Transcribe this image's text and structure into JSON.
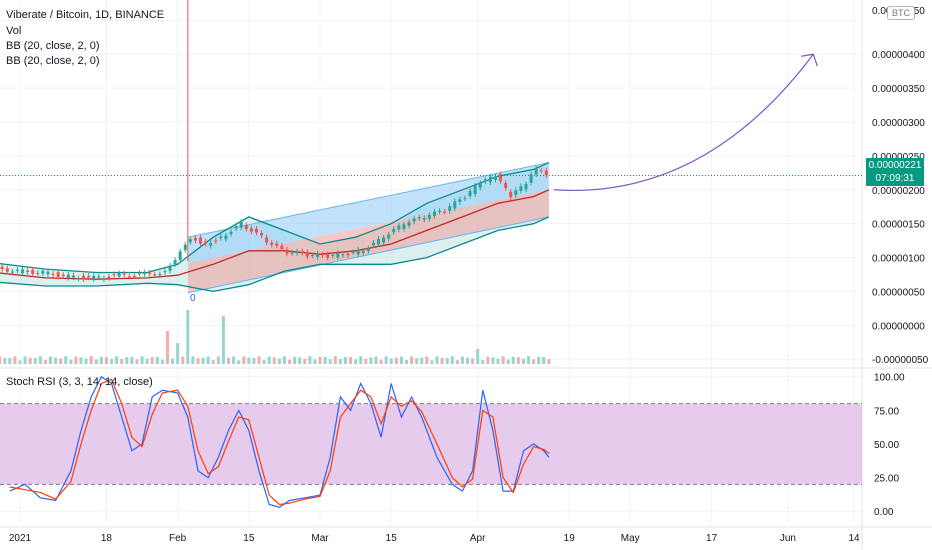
{
  "header": {
    "symbol_title": "Viberate / Bitcoin, 1D, BINANCE",
    "indicator_vol": "Vol",
    "indicator_bb1": "BB (20, close, 2, 0)",
    "indicator_bb2": "BB (20, close, 2, 0)",
    "rsi_title": "Stoch RSI (3, 3, 14, 14, close)",
    "currency_badge": "BTC"
  },
  "price_tag": {
    "price": "0.00000221",
    "countdown": "07:09:31"
  },
  "low_marker": "0",
  "colors": {
    "up": "#26a69a",
    "down": "#ef5350",
    "bb_basis": "#c62828",
    "bb_band": "#0b8a8a",
    "bb_fill": "#b2dfdb",
    "channel_blue": "#90caf9",
    "channel_red": "#ef9a9a",
    "arrow": "#7e57c2",
    "rsi_k": "#2962ff",
    "rsi_d": "#ff3d00",
    "rsi_band_fill": "#e1bee7",
    "price_tag": "#089981"
  },
  "chart_data": [
    {
      "type": "candlestick",
      "title": "Viberate / Bitcoin, 1D, BINANCE",
      "y_ticks": [
        "0.00000450",
        "0.00000400",
        "0.00000350",
        "0.00000300",
        "0.00000250",
        "0.00000200",
        "0.00000150",
        "0.00000100",
        "0.00000050",
        "0.00000000",
        "-0.00000050"
      ],
      "y_tick_values": [
        4.5e-06,
        4e-06,
        3.5e-06,
        3e-06,
        2.5e-06,
        2e-06,
        1.5e-06,
        1e-06,
        5e-07,
        0,
        -5e-07
      ],
      "ylim": [
        -6e-07,
        4.8e-06
      ],
      "x_ticks": [
        "2021",
        "18",
        "Feb",
        "15",
        "Mar",
        "15",
        "Apr",
        "19",
        "May",
        "17",
        "Jun",
        "14"
      ],
      "x_tick_dates": [
        "2021-01-01",
        "2021-01-18",
        "2021-02-01",
        "2021-02-15",
        "2021-03-01",
        "2021-03-15",
        "2021-04-01",
        "2021-04-19",
        "2021-05-01",
        "2021-05-17",
        "2021-06-01",
        "2021-06-14"
      ],
      "last_price": 2.21e-06,
      "close_series": {
        "dates": [
          "2020-12-27",
          "2021-01-01",
          "2021-01-06",
          "2021-01-11",
          "2021-01-16",
          "2021-01-21",
          "2021-01-26",
          "2021-01-30",
          "2021-02-02",
          "2021-02-04",
          "2021-02-07",
          "2021-02-10",
          "2021-02-14",
          "2021-02-18",
          "2021-02-22",
          "2021-02-26",
          "2021-03-02",
          "2021-03-06",
          "2021-03-10",
          "2021-03-14",
          "2021-03-18",
          "2021-03-22",
          "2021-03-26",
          "2021-03-30",
          "2021-04-02",
          "2021-04-05",
          "2021-04-08",
          "2021-04-11",
          "2021-04-13",
          "2021-04-15"
        ],
        "close": [
          8.5e-07,
          8e-07,
          7.8e-07,
          7.2e-07,
          7e-07,
          7.4e-07,
          7.5e-07,
          7.8e-07,
          1.1e-06,
          1.3e-06,
          1.2e-06,
          1.3e-06,
          1.5e-06,
          1.3e-06,
          1.1e-06,
          1.05e-06,
          1.02e-06,
          1.04e-06,
          1.1e-06,
          1.3e-06,
          1.5e-06,
          1.6e-06,
          1.7e-06,
          1.9e-06,
          2.1e-06,
          2.2e-06,
          1.9e-06,
          2.1e-06,
          2.3e-06,
          2.21e-06
        ]
      },
      "bb_basis": {
        "dates": [
          "2020-12-27",
          "2021-01-06",
          "2021-01-16",
          "2021-01-26",
          "2021-02-01",
          "2021-02-08",
          "2021-02-15",
          "2021-02-22",
          "2021-03-01",
          "2021-03-08",
          "2021-03-15",
          "2021-03-22",
          "2021-03-29",
          "2021-04-05",
          "2021-04-12",
          "2021-04-15"
        ],
        "values": [
          7.8e-07,
          7e-07,
          6.8e-07,
          7e-07,
          7.4e-07,
          9e-07,
          1.1e-06,
          1.1e-06,
          1.05e-06,
          1.1e-06,
          1.2e-06,
          1.4e-06,
          1.6e-06,
          1.8e-06,
          1.9e-06,
          2e-06
        ]
      },
      "bb_upper": {
        "dates": [
          "2020-12-27",
          "2021-01-06",
          "2021-01-16",
          "2021-01-26",
          "2021-02-01",
          "2021-02-08",
          "2021-02-15",
          "2021-02-22",
          "2021-03-01",
          "2021-03-08",
          "2021-03-15",
          "2021-03-22",
          "2021-03-29",
          "2021-04-05",
          "2021-04-12",
          "2021-04-15"
        ],
        "values": [
          9.2e-07,
          8.3e-07,
          7.8e-07,
          7.8e-07,
          9e-07,
          1.3e-06,
          1.6e-06,
          1.4e-06,
          1.2e-06,
          1.3e-06,
          1.5e-06,
          1.8e-06,
          2e-06,
          2.2e-06,
          2.3e-06,
          2.4e-06
        ]
      },
      "bb_lower": {
        "dates": [
          "2020-12-27",
          "2021-01-06",
          "2021-01-16",
          "2021-01-26",
          "2021-02-01",
          "2021-02-08",
          "2021-02-15",
          "2021-02-22",
          "2021-03-01",
          "2021-03-08",
          "2021-03-15",
          "2021-03-22",
          "2021-03-29",
          "2021-04-05",
          "2021-04-12",
          "2021-04-15"
        ],
        "values": [
          6.4e-07,
          5.8e-07,
          5.8e-07,
          6.2e-07,
          6e-07,
          5e-07,
          6e-07,
          8e-07,
          9e-07,
          9e-07,
          9e-07,
          1e-06,
          1.2e-06,
          1.4e-06,
          1.5e-06,
          1.6e-06
        ]
      },
      "channel_upper_line": {
        "from": [
          "2021-02-03",
          1.3e-06
        ],
        "to": [
          "2021-04-15",
          2.4e-06
        ]
      },
      "channel_mid_line": {
        "from": [
          "2021-02-03",
          9.2e-07
        ],
        "to": [
          "2021-04-15",
          2e-06
        ]
      },
      "channel_lower_line": {
        "from": [
          "2021-02-03",
          4.8e-07
        ],
        "to": [
          "2021-04-15",
          1.6e-06
        ]
      },
      "projection_arrow": {
        "from": [
          "2021-04-16",
          2e-06
        ],
        "to": [
          "2021-06-06",
          4e-06
        ]
      },
      "volume_spikes": [
        {
          "date": "2021-01-30",
          "rel": 0.55
        },
        {
          "date": "2021-02-01",
          "rel": 0.35
        },
        {
          "date": "2021-02-03",
          "rel": 0.9
        },
        {
          "date": "2021-02-10",
          "rel": 0.8
        },
        {
          "date": "2021-04-01",
          "rel": 0.25
        }
      ]
    },
    {
      "type": "line",
      "title": "Stoch RSI (3, 3, 14, 14, close)",
      "y_ticks": [
        "100.00",
        "75.00",
        "50.00",
        "25.00",
        "0.00"
      ],
      "y_tick_values": [
        100,
        75,
        50,
        25,
        0
      ],
      "ylim": [
        -8,
        105
      ],
      "band": [
        20,
        80
      ],
      "series": [
        {
          "key": "k",
          "dates": [
            "2020-12-30",
            "2021-01-02",
            "2021-01-05",
            "2021-01-08",
            "2021-01-11",
            "2021-01-13",
            "2021-01-15",
            "2021-01-17",
            "2021-01-19",
            "2021-01-21",
            "2021-01-23",
            "2021-01-25",
            "2021-01-27",
            "2021-01-29",
            "2021-02-01",
            "2021-02-03",
            "2021-02-05",
            "2021-02-07",
            "2021-02-09",
            "2021-02-11",
            "2021-02-13",
            "2021-02-15",
            "2021-02-17",
            "2021-02-19",
            "2021-02-21",
            "2021-02-23",
            "2021-02-26",
            "2021-03-01",
            "2021-03-03",
            "2021-03-05",
            "2021-03-07",
            "2021-03-09",
            "2021-03-11",
            "2021-03-13",
            "2021-03-15",
            "2021-03-17",
            "2021-03-19",
            "2021-03-21",
            "2021-03-24",
            "2021-03-27",
            "2021-03-29",
            "2021-03-31",
            "2021-04-02",
            "2021-04-04",
            "2021-04-06",
            "2021-04-08",
            "2021-04-10",
            "2021-04-12",
            "2021-04-14",
            "2021-04-15"
          ],
          "values": [
            15,
            20,
            10,
            8,
            30,
            60,
            85,
            100,
            95,
            70,
            45,
            50,
            85,
            90,
            88,
            70,
            30,
            25,
            40,
            60,
            75,
            60,
            30,
            5,
            3,
            8,
            10,
            12,
            40,
            85,
            75,
            95,
            80,
            55,
            95,
            70,
            85,
            70,
            40,
            20,
            15,
            30,
            90,
            60,
            15,
            15,
            45,
            50,
            45,
            40
          ]
        },
        {
          "key": "d",
          "dates": [
            "2020-12-30",
            "2021-01-02",
            "2021-01-05",
            "2021-01-08",
            "2021-01-11",
            "2021-01-13",
            "2021-01-15",
            "2021-01-17",
            "2021-01-19",
            "2021-01-21",
            "2021-01-23",
            "2021-01-25",
            "2021-01-27",
            "2021-01-29",
            "2021-02-01",
            "2021-02-03",
            "2021-02-05",
            "2021-02-07",
            "2021-02-09",
            "2021-02-11",
            "2021-02-13",
            "2021-02-15",
            "2021-02-17",
            "2021-02-19",
            "2021-02-21",
            "2021-02-23",
            "2021-02-26",
            "2021-03-01",
            "2021-03-03",
            "2021-03-05",
            "2021-03-07",
            "2021-03-09",
            "2021-03-11",
            "2021-03-13",
            "2021-03-15",
            "2021-03-17",
            "2021-03-19",
            "2021-03-21",
            "2021-03-24",
            "2021-03-27",
            "2021-03-29",
            "2021-03-31",
            "2021-04-02",
            "2021-04-04",
            "2021-04-06",
            "2021-04-08",
            "2021-04-10",
            "2021-04-12",
            "2021-04-14",
            "2021-04-15"
          ],
          "values": [
            18,
            16,
            14,
            9,
            22,
            50,
            75,
            95,
            98,
            80,
            55,
            48,
            72,
            88,
            90,
            78,
            45,
            28,
            33,
            52,
            70,
            68,
            40,
            12,
            5,
            6,
            9,
            11,
            30,
            70,
            80,
            90,
            85,
            65,
            85,
            78,
            82,
            74,
            50,
            25,
            18,
            24,
            75,
            70,
            25,
            14,
            35,
            48,
            46,
            43
          ]
        }
      ]
    }
  ]
}
